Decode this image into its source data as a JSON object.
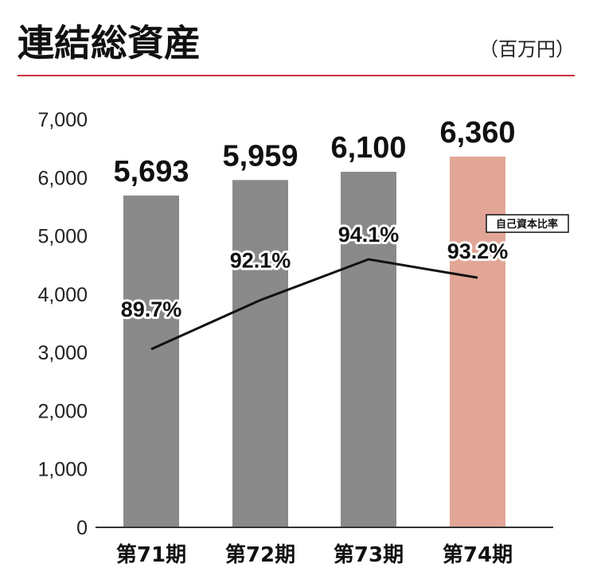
{
  "chart_data": {
    "type": "bar",
    "title": "連結総資産",
    "unit_label": "（百万円）",
    "categories": [
      "第71期",
      "第72期",
      "第73期",
      "第74期"
    ],
    "series": [
      {
        "values": [
          5693,
          5959,
          6100,
          6360
        ],
        "labels": [
          "5,693",
          "5,959",
          "6,100",
          "6,360"
        ]
      }
    ],
    "bar_colors": [
      "#8a8a8a",
      "#8a8a8a",
      "#8a8a8a",
      "#e2a697"
    ],
    "ylim": [
      0,
      7000
    ],
    "yticks": [
      0,
      1000,
      2000,
      3000,
      4000,
      5000,
      6000,
      7000
    ],
    "ytick_labels": [
      "0",
      "1,000",
      "2,000",
      "3,000",
      "4,000",
      "5,000",
      "6,000",
      "7,000"
    ],
    "line_series": {
      "name": "自己資本比率",
      "values": [
        89.7,
        92.1,
        94.1,
        93.2
      ],
      "labels": [
        "89.7%",
        "92.1%",
        "94.1%",
        "93.2%"
      ]
    },
    "grid": false,
    "legend": "right"
  },
  "colors": {
    "title_rule": "#c8343a",
    "axis": "#333333",
    "line": "#111111"
  }
}
